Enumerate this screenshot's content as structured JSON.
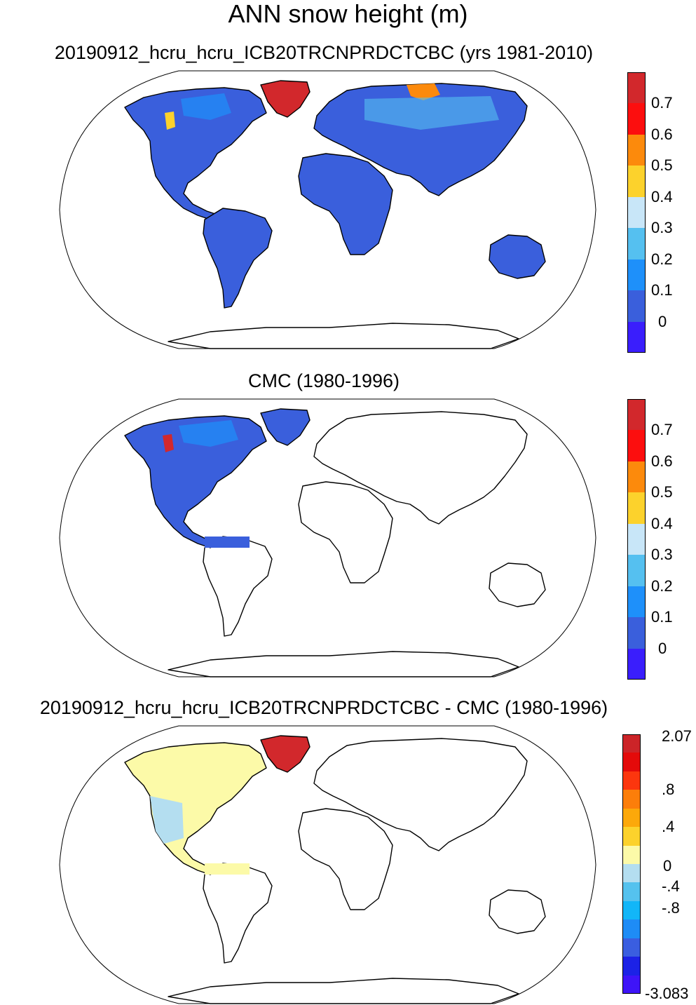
{
  "title": "ANN snow height (m)",
  "palette_snow": [
    "#3a1efc",
    "#3a5fdc",
    "#1e90fa",
    "#55c0f0",
    "#c8e6f8",
    "#fcd22c",
    "#fc8a0c",
    "#fc0e0e",
    "#d2282c"
  ],
  "palette_diff": [
    "#3e14f8",
    "#1c22e6",
    "#3a5ee0",
    "#1e8cf6",
    "#12b6f8",
    "#55c2ee",
    "#b4def0",
    "#fcfaa8",
    "#fcd22c",
    "#fca80a",
    "#fc7e0a",
    "#fc360e",
    "#e40a0a",
    "#cc2428"
  ],
  "land_colors": {
    "outline": "#000000",
    "land_snow_low": "#3a5fdc",
    "land_high": "#d2282c",
    "diff_positive": "#fcfaa8",
    "diff_negative": "#b4def0"
  },
  "panels": [
    {
      "id": "model",
      "title": "20190912_hcru_hcru_ICB20TRCNPRDCTCBC (yrs 1981-2010)",
      "colorbar": {
        "labels": [
          "0",
          "0.1",
          "0.2",
          "0.3",
          "0.4",
          "0.5",
          "0.6",
          "0.7"
        ],
        "levels": [
          0,
          0.1,
          0.2,
          0.3,
          0.4,
          0.5,
          0.6,
          0.7
        ],
        "palette": "palette_snow"
      }
    },
    {
      "id": "obs",
      "title": "CMC (1980-1996)",
      "colorbar": {
        "labels": [
          "0",
          "0.1",
          "0.2",
          "0.3",
          "0.4",
          "0.5",
          "0.6",
          "0.7"
        ],
        "levels": [
          0,
          0.1,
          0.2,
          0.3,
          0.4,
          0.5,
          0.6,
          0.7
        ],
        "palette": "palette_snow"
      }
    },
    {
      "id": "diff",
      "title": "20190912_hcru_hcru_ICB20TRCNPRDCTCBC - CMC (1980-1996)",
      "colorbar": {
        "labels": [
          "-3.083",
          "-.8",
          "-.4",
          "0",
          ".4",
          ".8",
          "2.07"
        ],
        "palette": "palette_diff"
      }
    }
  ]
}
